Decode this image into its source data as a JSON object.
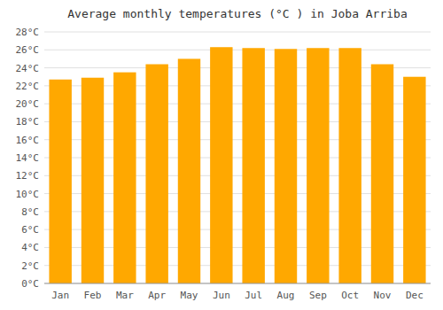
{
  "chart_data": {
    "type": "bar",
    "title": "Average monthly temperatures (°C ) in Joba Arriba",
    "categories": [
      "Jan",
      "Feb",
      "Mar",
      "Apr",
      "May",
      "Jun",
      "Jul",
      "Aug",
      "Sep",
      "Oct",
      "Nov",
      "Dec"
    ],
    "values": [
      22.7,
      22.9,
      23.5,
      24.4,
      25.0,
      26.3,
      26.2,
      26.1,
      26.2,
      26.2,
      24.4,
      23.0
    ],
    "color": "#FFA800",
    "ylim": [
      0,
      28
    ],
    "yticks": [
      {
        "value": 0,
        "label": "0°C"
      },
      {
        "value": 2,
        "label": "2°C"
      },
      {
        "value": 4,
        "label": "4°C"
      },
      {
        "value": 6,
        "label": "6°C"
      },
      {
        "value": 8,
        "label": "8°C"
      },
      {
        "value": 10,
        "label": "10°C"
      },
      {
        "value": 12,
        "label": "12°C"
      },
      {
        "value": 14,
        "label": "14°C"
      },
      {
        "value": 16,
        "label": "16°C"
      },
      {
        "value": 18,
        "label": "18°C"
      },
      {
        "value": 20,
        "label": "20°C"
      },
      {
        "value": 22,
        "label": "22°C"
      },
      {
        "value": 24,
        "label": "24°C"
      },
      {
        "value": 26,
        "label": "26°C"
      },
      {
        "value": 28,
        "label": "28°C"
      }
    ],
    "grid": true
  }
}
